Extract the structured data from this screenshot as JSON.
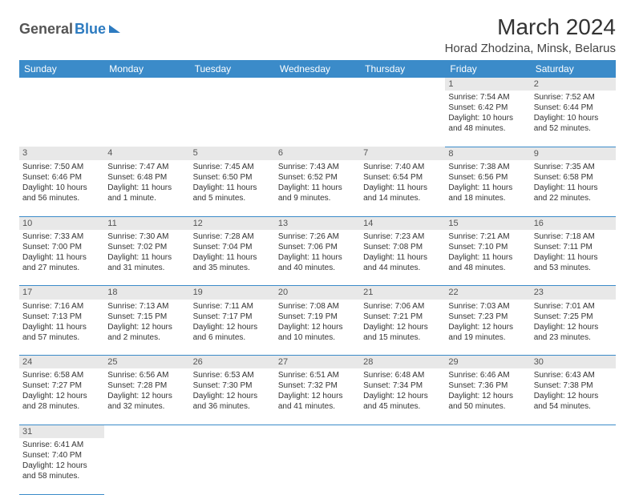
{
  "logo": {
    "part1": "General",
    "part2": "Blue"
  },
  "title": "March 2024",
  "location": "Horad Zhodzina, Minsk, Belarus",
  "colors": {
    "header_bg": "#3b8bc9",
    "daynum_bg": "#e8e8e8",
    "row_border": "#3b8bc9"
  },
  "weekdays": [
    "Sunday",
    "Monday",
    "Tuesday",
    "Wednesday",
    "Thursday",
    "Friday",
    "Saturday"
  ],
  "weeks": [
    [
      null,
      null,
      null,
      null,
      null,
      {
        "n": "1",
        "sr": "Sunrise: 7:54 AM",
        "ss": "Sunset: 6:42 PM",
        "d1": "Daylight: 10 hours",
        "d2": "and 48 minutes."
      },
      {
        "n": "2",
        "sr": "Sunrise: 7:52 AM",
        "ss": "Sunset: 6:44 PM",
        "d1": "Daylight: 10 hours",
        "d2": "and 52 minutes."
      }
    ],
    [
      {
        "n": "3",
        "sr": "Sunrise: 7:50 AM",
        "ss": "Sunset: 6:46 PM",
        "d1": "Daylight: 10 hours",
        "d2": "and 56 minutes."
      },
      {
        "n": "4",
        "sr": "Sunrise: 7:47 AM",
        "ss": "Sunset: 6:48 PM",
        "d1": "Daylight: 11 hours",
        "d2": "and 1 minute."
      },
      {
        "n": "5",
        "sr": "Sunrise: 7:45 AM",
        "ss": "Sunset: 6:50 PM",
        "d1": "Daylight: 11 hours",
        "d2": "and 5 minutes."
      },
      {
        "n": "6",
        "sr": "Sunrise: 7:43 AM",
        "ss": "Sunset: 6:52 PM",
        "d1": "Daylight: 11 hours",
        "d2": "and 9 minutes."
      },
      {
        "n": "7",
        "sr": "Sunrise: 7:40 AM",
        "ss": "Sunset: 6:54 PM",
        "d1": "Daylight: 11 hours",
        "d2": "and 14 minutes."
      },
      {
        "n": "8",
        "sr": "Sunrise: 7:38 AM",
        "ss": "Sunset: 6:56 PM",
        "d1": "Daylight: 11 hours",
        "d2": "and 18 minutes."
      },
      {
        "n": "9",
        "sr": "Sunrise: 7:35 AM",
        "ss": "Sunset: 6:58 PM",
        "d1": "Daylight: 11 hours",
        "d2": "and 22 minutes."
      }
    ],
    [
      {
        "n": "10",
        "sr": "Sunrise: 7:33 AM",
        "ss": "Sunset: 7:00 PM",
        "d1": "Daylight: 11 hours",
        "d2": "and 27 minutes."
      },
      {
        "n": "11",
        "sr": "Sunrise: 7:30 AM",
        "ss": "Sunset: 7:02 PM",
        "d1": "Daylight: 11 hours",
        "d2": "and 31 minutes."
      },
      {
        "n": "12",
        "sr": "Sunrise: 7:28 AM",
        "ss": "Sunset: 7:04 PM",
        "d1": "Daylight: 11 hours",
        "d2": "and 35 minutes."
      },
      {
        "n": "13",
        "sr": "Sunrise: 7:26 AM",
        "ss": "Sunset: 7:06 PM",
        "d1": "Daylight: 11 hours",
        "d2": "and 40 minutes."
      },
      {
        "n": "14",
        "sr": "Sunrise: 7:23 AM",
        "ss": "Sunset: 7:08 PM",
        "d1": "Daylight: 11 hours",
        "d2": "and 44 minutes."
      },
      {
        "n": "15",
        "sr": "Sunrise: 7:21 AM",
        "ss": "Sunset: 7:10 PM",
        "d1": "Daylight: 11 hours",
        "d2": "and 48 minutes."
      },
      {
        "n": "16",
        "sr": "Sunrise: 7:18 AM",
        "ss": "Sunset: 7:11 PM",
        "d1": "Daylight: 11 hours",
        "d2": "and 53 minutes."
      }
    ],
    [
      {
        "n": "17",
        "sr": "Sunrise: 7:16 AM",
        "ss": "Sunset: 7:13 PM",
        "d1": "Daylight: 11 hours",
        "d2": "and 57 minutes."
      },
      {
        "n": "18",
        "sr": "Sunrise: 7:13 AM",
        "ss": "Sunset: 7:15 PM",
        "d1": "Daylight: 12 hours",
        "d2": "and 2 minutes."
      },
      {
        "n": "19",
        "sr": "Sunrise: 7:11 AM",
        "ss": "Sunset: 7:17 PM",
        "d1": "Daylight: 12 hours",
        "d2": "and 6 minutes."
      },
      {
        "n": "20",
        "sr": "Sunrise: 7:08 AM",
        "ss": "Sunset: 7:19 PM",
        "d1": "Daylight: 12 hours",
        "d2": "and 10 minutes."
      },
      {
        "n": "21",
        "sr": "Sunrise: 7:06 AM",
        "ss": "Sunset: 7:21 PM",
        "d1": "Daylight: 12 hours",
        "d2": "and 15 minutes."
      },
      {
        "n": "22",
        "sr": "Sunrise: 7:03 AM",
        "ss": "Sunset: 7:23 PM",
        "d1": "Daylight: 12 hours",
        "d2": "and 19 minutes."
      },
      {
        "n": "23",
        "sr": "Sunrise: 7:01 AM",
        "ss": "Sunset: 7:25 PM",
        "d1": "Daylight: 12 hours",
        "d2": "and 23 minutes."
      }
    ],
    [
      {
        "n": "24",
        "sr": "Sunrise: 6:58 AM",
        "ss": "Sunset: 7:27 PM",
        "d1": "Daylight: 12 hours",
        "d2": "and 28 minutes."
      },
      {
        "n": "25",
        "sr": "Sunrise: 6:56 AM",
        "ss": "Sunset: 7:28 PM",
        "d1": "Daylight: 12 hours",
        "d2": "and 32 minutes."
      },
      {
        "n": "26",
        "sr": "Sunrise: 6:53 AM",
        "ss": "Sunset: 7:30 PM",
        "d1": "Daylight: 12 hours",
        "d2": "and 36 minutes."
      },
      {
        "n": "27",
        "sr": "Sunrise: 6:51 AM",
        "ss": "Sunset: 7:32 PM",
        "d1": "Daylight: 12 hours",
        "d2": "and 41 minutes."
      },
      {
        "n": "28",
        "sr": "Sunrise: 6:48 AM",
        "ss": "Sunset: 7:34 PM",
        "d1": "Daylight: 12 hours",
        "d2": "and 45 minutes."
      },
      {
        "n": "29",
        "sr": "Sunrise: 6:46 AM",
        "ss": "Sunset: 7:36 PM",
        "d1": "Daylight: 12 hours",
        "d2": "and 50 minutes."
      },
      {
        "n": "30",
        "sr": "Sunrise: 6:43 AM",
        "ss": "Sunset: 7:38 PM",
        "d1": "Daylight: 12 hours",
        "d2": "and 54 minutes."
      }
    ],
    [
      {
        "n": "31",
        "sr": "Sunrise: 6:41 AM",
        "ss": "Sunset: 7:40 PM",
        "d1": "Daylight: 12 hours",
        "d2": "and 58 minutes."
      },
      null,
      null,
      null,
      null,
      null,
      null
    ]
  ]
}
